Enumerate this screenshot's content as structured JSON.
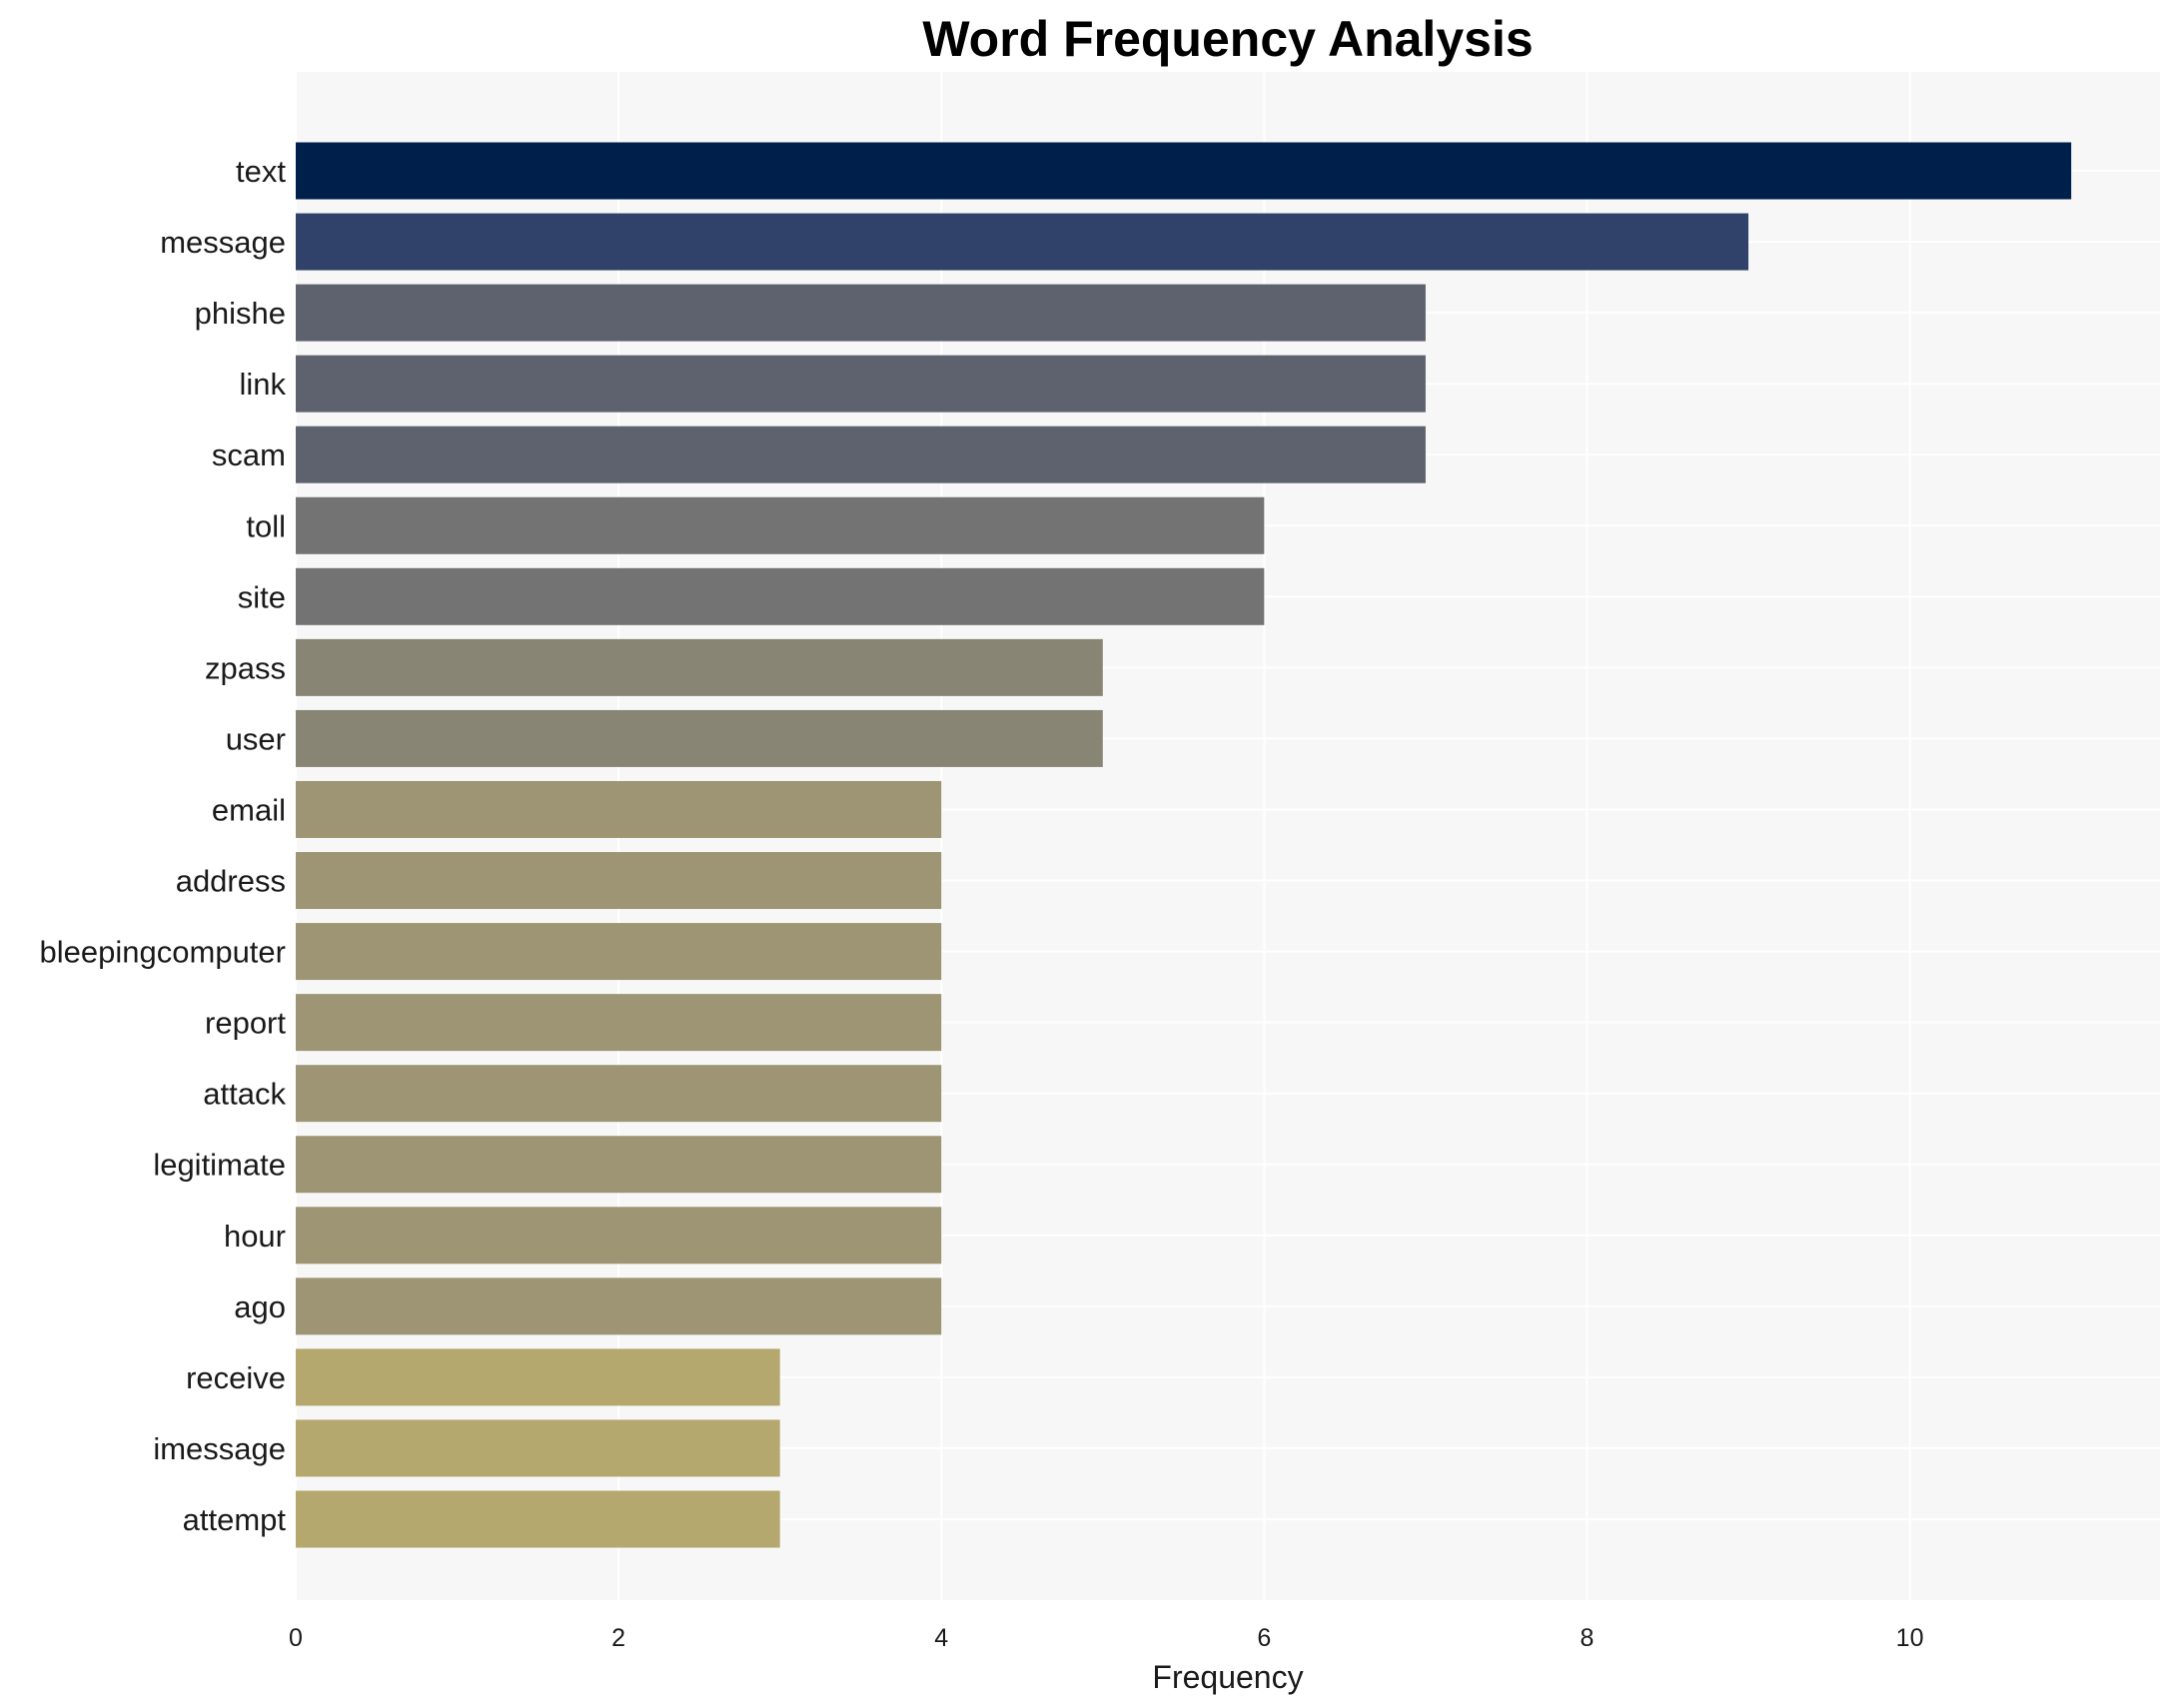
{
  "chart_data": {
    "type": "bar",
    "orientation": "horizontal",
    "title": "Word Frequency Analysis",
    "xlabel": "Frequency",
    "ylabel": "",
    "xlim": [
      0,
      11.55
    ],
    "xticks": [
      0,
      2,
      4,
      6,
      8,
      10
    ],
    "grid": true,
    "background": "#f7f7f7",
    "categories": [
      "text",
      "message",
      "phishe",
      "link",
      "scam",
      "toll",
      "site",
      "zpass",
      "user",
      "email",
      "address",
      "bleepingcomputer",
      "report",
      "attack",
      "legitimate",
      "hour",
      "ago",
      "receive",
      "imessage",
      "attempt"
    ],
    "values": [
      11,
      9,
      7,
      7,
      7,
      6,
      6,
      5,
      5,
      4,
      4,
      4,
      4,
      4,
      4,
      4,
      4,
      3,
      3,
      3
    ],
    "colors": [
      "#00204c",
      "#30416a",
      "#5e626e",
      "#5e626e",
      "#5e626e",
      "#737373",
      "#737373",
      "#888574",
      "#888574",
      "#9e9574",
      "#9e9574",
      "#9e9574",
      "#9e9574",
      "#9e9574",
      "#9e9574",
      "#9e9574",
      "#9e9574",
      "#b4a86e",
      "#b4a86e",
      "#b4a86e"
    ]
  }
}
